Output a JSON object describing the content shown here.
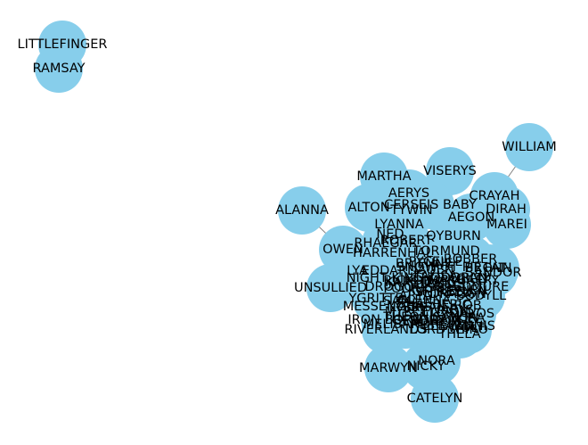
{
  "graph": {
    "colors": {
      "node": "#87ceeb",
      "edge": "#808080",
      "label": "#000000",
      "background": "#ffffff"
    },
    "nodes": [
      {
        "id": "LITTLEFINGER",
        "label": "LITTLEFINGER"
      },
      {
        "id": "RAMSAY",
        "label": "RAMSAY"
      },
      {
        "id": "WILLIAM",
        "label": "WILLIAM"
      },
      {
        "id": "VISERYS",
        "label": "VISERYS"
      },
      {
        "id": "MARTHA",
        "label": "MARTHA"
      },
      {
        "id": "AERYS",
        "label": "AERYS"
      },
      {
        "id": "CRAYAH",
        "label": "CRAYAH"
      },
      {
        "id": "CERSEIS BABY",
        "label": "CERSEIS BABY"
      },
      {
        "id": "ALTON",
        "label": "ALTON"
      },
      {
        "id": "TYWIN",
        "label": "TYWIN"
      },
      {
        "id": "DIRAH",
        "label": "DIRAH"
      },
      {
        "id": "AEGON",
        "label": "AEGON"
      },
      {
        "id": "ALANNA",
        "label": "ALANNA"
      },
      {
        "id": "MAREI",
        "label": "MAREI"
      },
      {
        "id": "LYANNA",
        "label": "LYANNA"
      },
      {
        "id": "NED",
        "label": "NED"
      },
      {
        "id": "QYBURN",
        "label": "QYBURN"
      },
      {
        "id": "ROBERT",
        "label": "ROBERT"
      },
      {
        "id": "RHAEGAR",
        "label": "RHAEGAR"
      },
      {
        "id": "OWEN",
        "label": "OWEN"
      },
      {
        "id": "HARRENHAL",
        "label": "HARRENHAL"
      },
      {
        "id": "TORMUND",
        "label": "TORMUND"
      },
      {
        "id": "ROBBER",
        "label": "ROBBER"
      },
      {
        "id": "LYA",
        "label": "LYA"
      },
      {
        "id": "EDDARD",
        "label": "EDDARD"
      },
      {
        "id": "BRIENNE",
        "label": "BRIENNE"
      },
      {
        "id": "HOT PIE",
        "label": "HOT PIE"
      },
      {
        "id": "BRONN",
        "label": "BRONN"
      },
      {
        "id": "TALISA",
        "label": "TALISA"
      },
      {
        "id": "DORAN",
        "label": "DORAN"
      },
      {
        "id": "GILLY",
        "label": "GILLY"
      },
      {
        "id": "NIGHT KING",
        "label": "NIGHT KING"
      },
      {
        "id": "JAQEN",
        "label": "JAQEN"
      },
      {
        "id": "SANDOR",
        "label": "SANDOR"
      },
      {
        "id": "UNSULLIED",
        "label": "UNSULLIED"
      },
      {
        "id": "DROGO",
        "label": "DROGO"
      },
      {
        "id": "JORAH",
        "label": "JORAH"
      },
      {
        "id": "PODRICK",
        "label": "PODRICK"
      },
      {
        "id": "BENJEN",
        "label": "BENJEN"
      },
      {
        "id": "LOLLYS",
        "label": "LOLLYS"
      },
      {
        "id": "ARYA",
        "label": "ARYA"
      },
      {
        "id": "YGRITTE",
        "label": "YGRITTE"
      },
      {
        "id": "OLENNA",
        "label": "OLENNA"
      },
      {
        "id": "DRAGON",
        "label": "DRAGON"
      },
      {
        "id": "SHIREEN",
        "label": "SHIREEN"
      },
      {
        "id": "EDMURE",
        "label": "EDMURE"
      },
      {
        "id": "MESSENGER",
        "label": "MESSENGER"
      },
      {
        "id": "BRAN",
        "label": "BRAN"
      },
      {
        "id": "BERIC",
        "label": "BERIC"
      },
      {
        "id": "LYSA",
        "label": "LYSA"
      },
      {
        "id": "TYRION",
        "label": "TYRION"
      },
      {
        "id": "DAVOS",
        "label": "DAVOS"
      },
      {
        "id": "IRON BORN",
        "label": "IRON BORN"
      },
      {
        "id": "GENDRY",
        "label": "GENDRY"
      },
      {
        "id": "LANCEL",
        "label": "LANCEL"
      },
      {
        "id": "RIVERLANDS",
        "label": "RIVERLANDS"
      },
      {
        "id": "LORD",
        "label": "LORD"
      },
      {
        "id": "STANNIS",
        "label": "STANNIS"
      },
      {
        "id": "THEON",
        "label": "THEON"
      },
      {
        "id": "KARSTARK",
        "label": "KARSTARK"
      },
      {
        "id": "MELISANDRE",
        "label": "MELISANDRE"
      },
      {
        "id": "BOLTON",
        "label": "BOLTON"
      },
      {
        "id": "SAM",
        "label": "SAM"
      },
      {
        "id": "ROB",
        "label": "ROB"
      },
      {
        "id": "VARYS",
        "label": "VARYS"
      },
      {
        "id": "JOFFREY",
        "label": "JOFFREY"
      },
      {
        "id": "MYRCELLA",
        "label": "MYRCELLA"
      },
      {
        "id": "HODOR",
        "label": "HODOR"
      },
      {
        "id": "SNOW",
        "label": "SNOW"
      },
      {
        "id": "FAT",
        "label": "FAT"
      },
      {
        "id": "PYCELLE",
        "label": "PYCELLE"
      },
      {
        "id": "BODYLL",
        "label": "BODYLL"
      },
      {
        "id": "MARGAERY",
        "label": "MARGAERY"
      },
      {
        "id": "SANSA",
        "label": "SANSA"
      },
      {
        "id": "ELLARIA",
        "label": "ELLARIA"
      },
      {
        "id": "SHAE",
        "label": "SHAE"
      },
      {
        "id": "KIRA",
        "label": "KIRA"
      },
      {
        "id": "WOLF",
        "label": "WOLF"
      },
      {
        "id": "SHIRO",
        "label": "SHIRO"
      },
      {
        "id": "RICKON",
        "label": "RICKON"
      },
      {
        "id": "THELA",
        "label": "THELA"
      },
      {
        "id": "MARWYN",
        "label": "MARWYN"
      },
      {
        "id": "NORA",
        "label": "NORA"
      },
      {
        "id": "NICKY",
        "label": "NICKY"
      },
      {
        "id": "CATELYN",
        "label": "CATELYN"
      }
    ],
    "edges": [
      [
        "LITTLEFINGER",
        "RAMSAY"
      ],
      [
        "WILLIAM",
        "CRAYAH"
      ],
      [
        "ALANNA",
        "OWEN"
      ],
      [
        "VISERYS",
        "CERSEIS BABY"
      ],
      [
        "MARTHA",
        "AERYS"
      ],
      [
        "CRAYAH",
        "MAREI"
      ],
      [
        "AEGON",
        "DIRAH"
      ],
      [
        "NICKY",
        "NORA"
      ],
      [
        "CATELYN",
        "NORA"
      ],
      [
        "MARWYN",
        "NORA"
      ],
      [
        "ALTON",
        "LYANNA"
      ],
      [
        "TYWIN",
        "ROBERT"
      ],
      [
        "OWEN",
        "HARRENHAL"
      ]
    ]
  }
}
